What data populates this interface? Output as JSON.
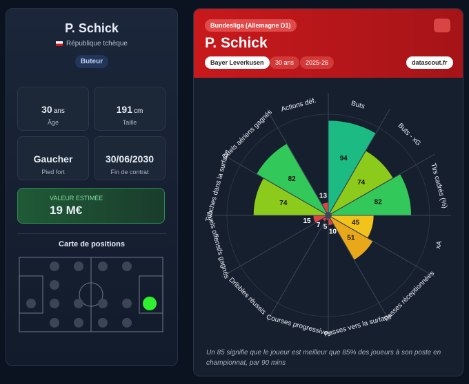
{
  "profile": {
    "name": "P. Schick",
    "country": "République tchèque",
    "role": "Buteur",
    "stats": [
      {
        "value": "30",
        "unit": "ans",
        "label": "Âge"
      },
      {
        "value": "191",
        "unit": "cm",
        "label": "Taille"
      },
      {
        "value": "Gaucher",
        "label": "Pied fort"
      },
      {
        "value": "30/06/2030",
        "label": "Fin de contrat"
      }
    ],
    "market_value": {
      "label": "VALEUR ESTIMÉE",
      "value": "19 M€"
    },
    "positions_title": "Carte de positions"
  },
  "header": {
    "league": "Bundesliga (Allemagne D1)",
    "name": "P. Schick",
    "club": "Bayer Leverkusen",
    "age": "30 ans",
    "season": "2025-26",
    "source": "datascout.fr"
  },
  "chart_data": {
    "type": "pizza",
    "categories": [
      "Buts",
      "Buts - xG",
      "Tirs cadrés (%)",
      "xA",
      "Passes réceptionnées",
      "Passes vers la surface",
      "Courses progressives",
      "Dribbles réussis",
      "Duels offensifs gagnés",
      "Touches dans la surface",
      "Duels aériens gagnés",
      "Actions déf."
    ],
    "values": [
      94,
      74,
      82,
      45,
      51,
      10,
      5,
      7,
      15,
      74,
      82,
      13
    ],
    "colors": [
      "#1dbb84",
      "#8ccb1c",
      "#33c85a",
      "#f2c31a",
      "#e9a81a",
      "#e04343",
      "#e04343",
      "#e04343",
      "#e04343",
      "#8ccb1c",
      "#33c85a",
      "#e04343"
    ],
    "rlim": [
      0,
      100
    ]
  },
  "note": "Un 85 signifie que le joueur est meilleur que 85% des joueurs à son poste en championnat, par 90 mins"
}
